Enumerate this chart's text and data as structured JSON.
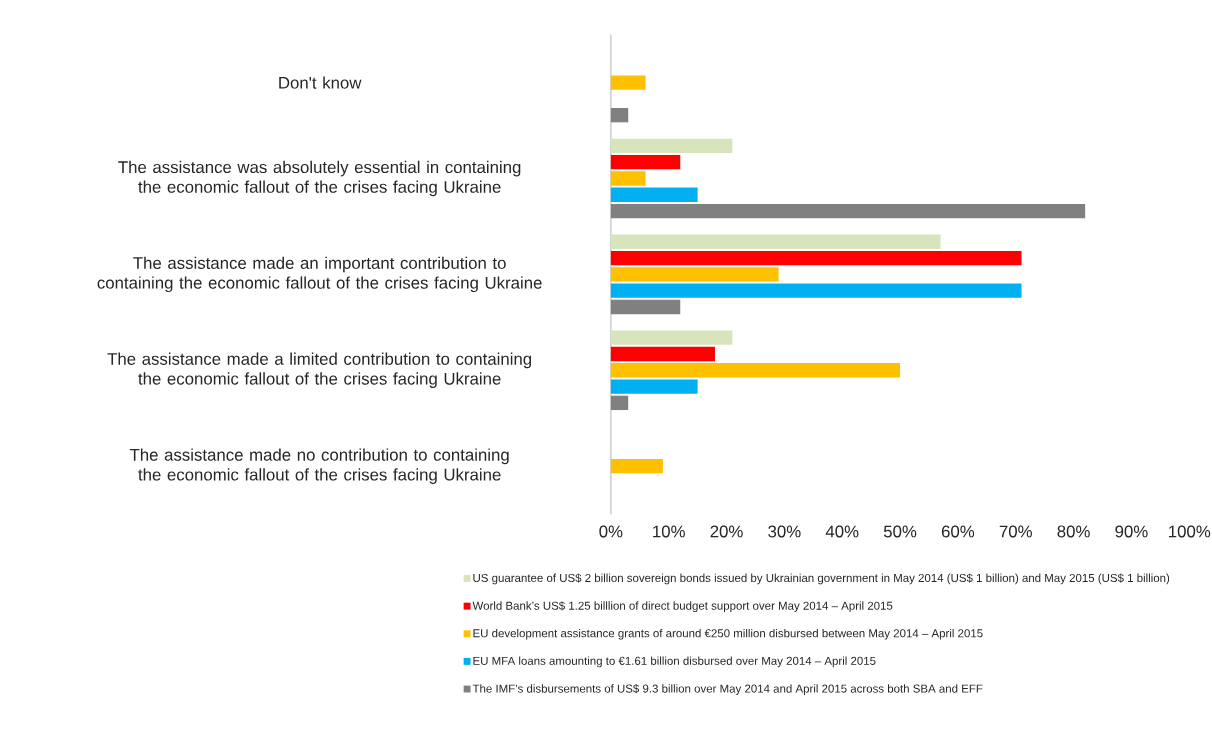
{
  "chart_data": {
    "type": "bar",
    "orientation": "horizontal",
    "categories": [
      "Don't know",
      "The assistance was absolutely essential in containing the economic fallout of the crises facing Ukraine",
      "The assistance made an important contribution to containing the economic fallout of the crises facing Ukraine",
      "The assistance made a limited contribution to containing the economic fallout of the crises facing Ukraine",
      "The assistance made no contribution to containing the economic fallout of the crises facing Ukraine"
    ],
    "series": [
      {
        "name": "US guarantee of US$ 2 billion sovereign bonds issued by Ukrainian government in May 2014 (US$ 1 billion) and May 2015 (US$ 1 billion)",
        "color": "#d8e4bc",
        "values": [
          0,
          21,
          57,
          21,
          0
        ]
      },
      {
        "name": "World Bank’s US$ 1.25 billlion of direct budget support over May 2014 – April 2015",
        "color": "#ff0000",
        "values": [
          0,
          12,
          71,
          18,
          0
        ]
      },
      {
        "name": "EU development assistance grants of around €250 million disbursed between May 2014 – April 2015",
        "color": "#ffc000",
        "values": [
          6,
          6,
          29,
          50,
          9
        ]
      },
      {
        "name": "EU MFA loans amounting to €1.61 billion disbursed over May 2014 – April 2015",
        "color": "#00b0f0",
        "values": [
          0,
          15,
          71,
          15,
          0
        ]
      },
      {
        "name": "The IMF’s disbursements of US$ 9.3 billion over May 2014 and April 2015 across both SBA and EFF",
        "color": "#808080",
        "values": [
          3,
          82,
          12,
          3,
          0
        ]
      }
    ],
    "xlim": [
      0,
      100
    ],
    "xticks": [
      {
        "value": 0,
        "label": "0%"
      },
      {
        "value": 10,
        "label": "10%"
      },
      {
        "value": 20,
        "label": "20%"
      },
      {
        "value": 30,
        "label": "30%"
      },
      {
        "value": 40,
        "label": "40%"
      },
      {
        "value": 50,
        "label": "50%"
      },
      {
        "value": 60,
        "label": "60%"
      },
      {
        "value": 70,
        "label": "70%"
      },
      {
        "value": 80,
        "label": "80%"
      },
      {
        "value": 90,
        "label": "90%"
      },
      {
        "value": 100,
        "label": "100%"
      }
    ],
    "grid": false,
    "legend": "bottom"
  }
}
